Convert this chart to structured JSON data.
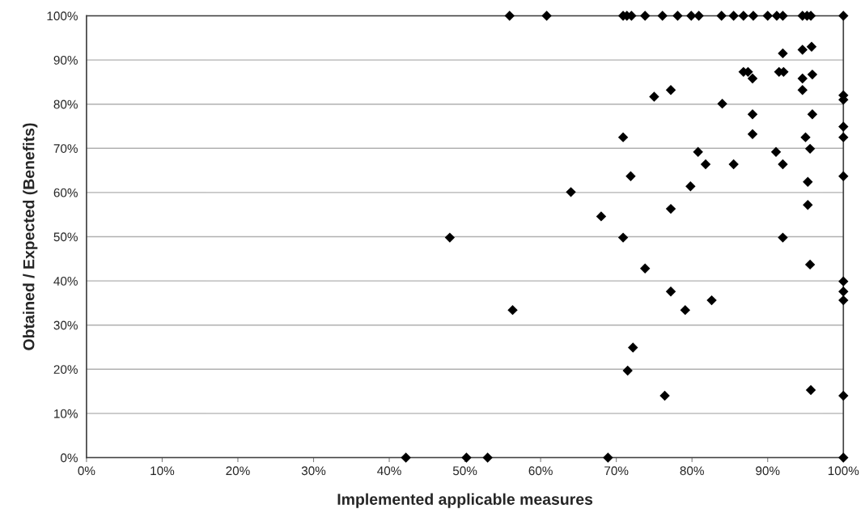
{
  "chart_data": {
    "type": "scatter",
    "xlabel": "Implemented applicable measures",
    "ylabel": "Obtained / Expected (Benefits)",
    "x": [
      55.9,
      60.8,
      70.9,
      71.4,
      72.0,
      73.8,
      76.1,
      78.1,
      79.9,
      80.9,
      83.9,
      85.5,
      86.8,
      88.1,
      90.0,
      91.2,
      92.0,
      94.6,
      95.2,
      95.7,
      100,
      92.0,
      94.6,
      95.8,
      86.8,
      87.4,
      88.0,
      91.5,
      92.1,
      94.6,
      95.9,
      94.6,
      75.0,
      77.2,
      84.0,
      100,
      100,
      88.0,
      95.9,
      100,
      70.9,
      88.0,
      95.0,
      100,
      95.6,
      80.8,
      91.1,
      81.8,
      85.5,
      92.0,
      71.9,
      79.8,
      95.3,
      100,
      64.0,
      68.0,
      77.2,
      95.3,
      70.9,
      92.0,
      48.0,
      73.8,
      95.6,
      100,
      100,
      100,
      77.2,
      82.6,
      79.1,
      56.3,
      72.2,
      71.5,
      76.4,
      95.7,
      100,
      42.2,
      50.2,
      53.0,
      68.9,
      100
    ],
    "values": [
      100,
      100,
      100,
      100,
      100,
      100,
      100,
      100,
      100,
      100,
      100,
      100,
      100,
      100,
      100,
      100,
      100,
      100,
      100,
      100,
      100,
      91.5,
      92.3,
      93.0,
      87.3,
      87.3,
      85.8,
      87.3,
      87.3,
      85.8,
      86.7,
      83.2,
      81.7,
      83.2,
      80.1,
      81.0,
      82.0,
      77.7,
      77.7,
      74.9,
      72.5,
      73.2,
      72.5,
      72.5,
      69.9,
      69.2,
      69.2,
      66.4,
      66.4,
      66.4,
      63.7,
      61.4,
      62.4,
      63.7,
      60.1,
      54.6,
      56.3,
      57.2,
      49.8,
      49.8,
      49.8,
      42.8,
      43.7,
      39.9,
      37.6,
      35.6,
      37.6,
      35.6,
      33.4,
      33.4,
      24.9,
      19.7,
      14.0,
      15.3,
      14.0,
      0,
      0,
      0,
      0,
      0
    ],
    "color": "#000000",
    "marker": "diamond",
    "xlim": [
      0,
      100
    ],
    "ylim": [
      0,
      100
    ],
    "xticks": [
      {
        "value": 0,
        "label": "0%"
      },
      {
        "value": 10,
        "label": "10%"
      },
      {
        "value": 20,
        "label": "20%"
      },
      {
        "value": 30,
        "label": "30%"
      },
      {
        "value": 40,
        "label": "40%"
      },
      {
        "value": 50,
        "label": "50%"
      },
      {
        "value": 60,
        "label": "60%"
      },
      {
        "value": 70,
        "label": "70%"
      },
      {
        "value": 80,
        "label": "80%"
      },
      {
        "value": 90,
        "label": "90%"
      },
      {
        "value": 100,
        "label": "100%"
      }
    ],
    "yticks": [
      {
        "value": 0,
        "label": "0%"
      },
      {
        "value": 10,
        "label": "10%"
      },
      {
        "value": 20,
        "label": "20%"
      },
      {
        "value": 30,
        "label": "30%"
      },
      {
        "value": 40,
        "label": "40%"
      },
      {
        "value": 50,
        "label": "50%"
      },
      {
        "value": 60,
        "label": "60%"
      },
      {
        "value": 70,
        "label": "70%"
      },
      {
        "value": 80,
        "label": "80%"
      },
      {
        "value": 90,
        "label": "90%"
      },
      {
        "value": 100,
        "label": "100%"
      }
    ],
    "grid": "y",
    "legend": false
  }
}
